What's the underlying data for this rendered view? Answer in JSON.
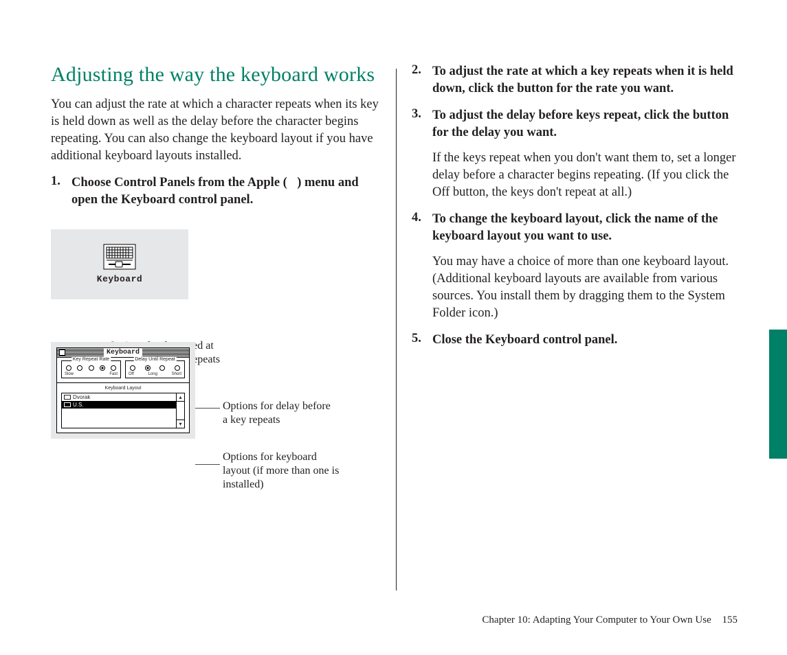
{
  "colors": {
    "accent": "#008066",
    "text": "#231f20",
    "panel_bg": "#e6e7e8",
    "line": "#4d4d4d"
  },
  "heading": "Adjusting the way the keyboard works",
  "intro": "You can adjust the rate at which a character repeats when its key is held down as well as the delay before the character begins repeating. You can also change the keyboard layout if you have additional keyboard layouts installed.",
  "steps_left": [
    {
      "num": "1.",
      "bold_pre": "Choose Control Panels from the Apple (",
      "apple_glyph": "",
      "bold_post": ") menu and open the Keyboard control panel."
    }
  ],
  "steps_right": [
    {
      "num": "2.",
      "bold": "To adjust the rate at which a key repeats when it is held down, click the button for the rate you want."
    },
    {
      "num": "3.",
      "bold": "To adjust the delay before keys repeat, click the button for the delay you want.",
      "sub": "If the keys repeat when you don't want them to, set a longer delay before a character begins repeating. (If you click the Off button, the keys don't repeat at all.)"
    },
    {
      "num": "4.",
      "bold": "To change the keyboard layout, click the name of the keyboard layout you want to use.",
      "sub": "You may have a choice of more than one keyboard layout. (Additional keyboard layouts are available from various sources. You install them by dragging them to the System Folder icon.)"
    },
    {
      "num": "5.",
      "bold": "Close the Keyboard control panel."
    }
  ],
  "icon_label": "Keyboard",
  "callouts": {
    "top": "Options for the speed at which a character repeats",
    "r1": "Options for delay before a key repeats",
    "r2": "Options for keyboard layout (if more than one is installed)"
  },
  "panel": {
    "title": "Keyboard",
    "rate": {
      "label": "Key Repeat Rate",
      "count": 5,
      "selected": 3,
      "left": "Slow",
      "right": "Fast"
    },
    "delay": {
      "label": "Delay Until Repeat",
      "count": 4,
      "selected": 1,
      "left": "Off",
      "mid": "Long",
      "right": "Short"
    },
    "layout": {
      "label": "Keyboard Layout",
      "items": [
        "Dvorak",
        "U.S."
      ],
      "selected": 1
    }
  },
  "footer": {
    "chapter": "Chapter 10:  Adapting Your Computer to Your Own Use",
    "page": "155"
  }
}
